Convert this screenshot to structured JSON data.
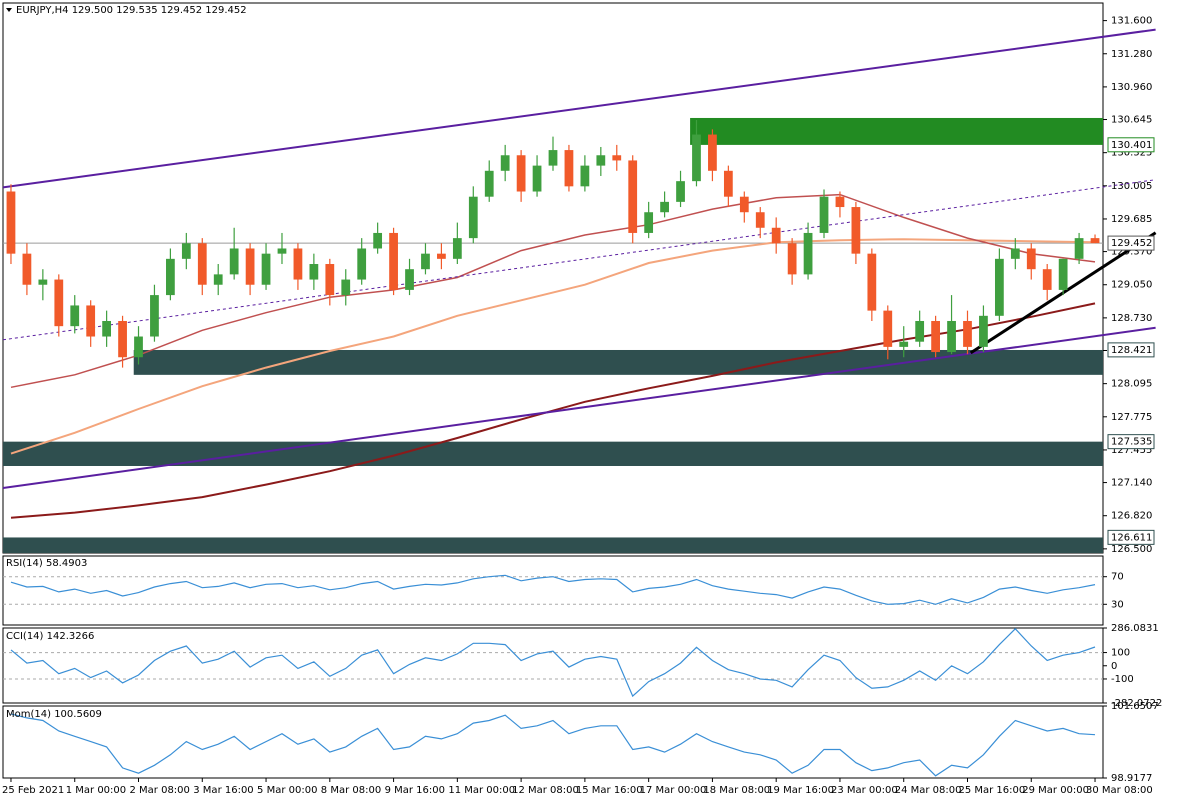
{
  "chart_data": [
    {
      "type": "candlestick",
      "title": "EURJPY,H4  129.500 129.535 129.452 129.452",
      "up_color": "#3f9f3f",
      "down_color": "#f15a2a",
      "open": [
        129.95,
        129.35,
        129.05,
        129.1,
        128.65,
        128.85,
        128.55,
        128.7,
        128.35,
        128.55,
        128.95,
        129.3,
        129.45,
        129.05,
        129.15,
        129.4,
        129.05,
        129.35,
        129.4,
        129.1,
        129.25,
        128.95,
        129.1,
        129.4,
        129.55,
        129.0,
        129.2,
        129.35,
        129.3,
        129.5,
        129.9,
        130.15,
        130.3,
        129.95,
        130.2,
        130.35,
        130.0,
        130.2,
        130.3,
        130.25,
        129.55,
        129.75,
        129.85,
        130.05,
        130.5,
        130.15,
        129.9,
        129.75,
        129.6,
        129.45,
        129.15,
        129.55,
        129.9,
        129.8,
        129.35,
        128.8,
        128.45,
        128.5,
        128.7,
        128.4,
        128.7,
        128.45,
        128.75,
        129.3,
        129.4,
        129.2,
        129.0,
        129.3,
        129.5
      ],
      "high": [
        130.02,
        129.45,
        129.2,
        129.15,
        128.95,
        128.9,
        128.8,
        128.75,
        128.65,
        129.05,
        129.4,
        129.55,
        129.5,
        129.25,
        129.6,
        129.45,
        129.45,
        129.55,
        129.45,
        129.35,
        129.3,
        129.2,
        129.5,
        129.65,
        129.6,
        129.3,
        129.45,
        129.45,
        129.65,
        130.0,
        130.25,
        130.4,
        130.35,
        130.3,
        130.48,
        130.4,
        130.3,
        130.38,
        130.4,
        130.3,
        129.85,
        129.95,
        130.15,
        130.64,
        130.55,
        130.2,
        129.95,
        129.8,
        129.7,
        129.5,
        129.65,
        129.97,
        129.95,
        129.85,
        129.4,
        128.85,
        128.65,
        128.8,
        128.75,
        128.95,
        128.8,
        128.85,
        129.4,
        129.5,
        129.45,
        129.25,
        129.3,
        129.55,
        129.535
      ],
      "low": [
        129.25,
        128.95,
        128.9,
        128.55,
        128.58,
        128.45,
        128.45,
        128.25,
        128.28,
        128.5,
        128.9,
        129.2,
        128.95,
        128.95,
        129.1,
        128.95,
        129.0,
        129.25,
        129.0,
        129.0,
        128.85,
        128.85,
        129.05,
        129.35,
        128.95,
        128.95,
        129.15,
        129.2,
        129.25,
        129.45,
        129.85,
        130.05,
        129.85,
        129.9,
        130.15,
        129.95,
        129.95,
        130.1,
        130.15,
        129.45,
        129.5,
        129.7,
        129.8,
        130.0,
        130.05,
        129.8,
        129.65,
        129.5,
        129.35,
        129.05,
        129.1,
        129.5,
        129.7,
        129.25,
        128.7,
        128.33,
        128.35,
        128.45,
        128.35,
        128.38,
        128.38,
        128.4,
        128.7,
        129.2,
        129.1,
        128.9,
        128.95,
        129.25,
        129.452
      ],
      "close": [
        129.35,
        129.05,
        129.1,
        128.65,
        128.85,
        128.55,
        128.7,
        128.35,
        128.55,
        128.95,
        129.3,
        129.45,
        129.05,
        129.15,
        129.4,
        129.05,
        129.35,
        129.4,
        129.1,
        129.25,
        128.95,
        129.1,
        129.4,
        129.55,
        129.0,
        129.2,
        129.35,
        129.3,
        129.5,
        129.9,
        130.15,
        130.3,
        129.95,
        130.2,
        130.35,
        130.0,
        130.2,
        130.3,
        130.25,
        129.55,
        129.75,
        129.85,
        130.05,
        130.5,
        130.15,
        129.9,
        129.75,
        129.6,
        129.45,
        129.15,
        129.55,
        129.9,
        129.8,
        129.35,
        128.8,
        128.45,
        128.5,
        128.7,
        128.4,
        128.7,
        128.45,
        128.75,
        129.3,
        129.4,
        129.2,
        129.0,
        129.3,
        129.5,
        129.452
      ],
      "xlim": [
        -0.5,
        68.5
      ],
      "ylim": [
        126.46,
        131.77
      ],
      "yticks": [
        {
          "value": 131.6,
          "label": "131.600"
        },
        {
          "value": 131.28,
          "label": "131.280"
        },
        {
          "value": 130.96,
          "label": "130.960"
        },
        130.645,
        130.325,
        {
          "value": 130.005,
          "label": "130.005"
        },
        129.685,
        {
          "value": 129.37,
          "label": "129.370"
        },
        {
          "value": 129.05,
          "label": "129.050"
        },
        {
          "value": 128.73,
          "label": "128.730"
        },
        128.415,
        128.095,
        127.775,
        127.455,
        {
          "value": 127.14,
          "label": "127.140"
        },
        {
          "value": 126.82,
          "label": "126.820"
        },
        {
          "value": 126.5,
          "label": "126.500"
        }
      ],
      "xticks": [
        {
          "value": 0,
          "label": "25 Feb 2021"
        },
        {
          "value": 4,
          "label": "1 Mar 00:00"
        },
        {
          "value": 8,
          "label": "2 Mar 08:00"
        },
        {
          "value": 12,
          "label": "3 Mar 16:00"
        },
        {
          "value": 16,
          "label": "5 Mar 00:00"
        },
        {
          "value": 20,
          "label": "8 Mar 08:00"
        },
        {
          "value": 24,
          "label": "9 Mar 16:00"
        },
        {
          "value": 28,
          "label": "11 Mar 00:00"
        },
        {
          "value": 32,
          "label": "12 Mar 08:00"
        },
        {
          "value": 36,
          "label": "15 Mar 16:00"
        },
        {
          "value": 40,
          "label": "17 Mar 00:00"
        },
        {
          "value": 44,
          "label": "18 Mar 08:00"
        },
        {
          "value": 48,
          "label": "19 Mar 16:00"
        },
        {
          "value": 52,
          "label": "23 Mar 00:00"
        },
        {
          "value": 56,
          "label": "24 Mar 08:00"
        },
        {
          "value": 60,
          "label": "25 Mar 16:00"
        },
        {
          "value": 64,
          "label": "29 Mar 00:00"
        },
        {
          "value": 68,
          "label": "30 Mar 08:00"
        }
      ],
      "zones": [
        {
          "from": 130.66,
          "to": 130.4,
          "start": 42.6,
          "color": "#228b22",
          "label": 130.401,
          "label_color": "#228b22"
        },
        {
          "from": 128.42,
          "to": 128.18,
          "start": 7.7,
          "color": "#2f4f4f",
          "label": 128.421,
          "label_color": "#2f4f4f"
        },
        {
          "from": 127.535,
          "to": 127.3,
          "start": -0.5,
          "color": "#2f4f4f",
          "label": 127.535,
          "label_color": "#2f4f4f"
        },
        {
          "from": 126.61,
          "to": 126.46,
          "start": -0.5,
          "color": "#2f4f4f",
          "label": 126.611,
          "label_color": "#2f4f4f"
        }
      ],
      "last_price": 129.452,
      "lines": [
        {
          "color": "#f4a57c",
          "width": 2,
          "x": [
            0,
            4,
            8,
            12,
            16,
            20,
            24,
            28,
            32,
            36,
            40,
            44,
            48,
            52,
            56,
            60,
            64,
            68
          ],
          "values": [
            127.42,
            127.62,
            127.85,
            128.07,
            128.25,
            128.41,
            128.55,
            128.75,
            128.9,
            129.05,
            129.26,
            129.38,
            129.46,
            129.48,
            129.49,
            129.48,
            129.47,
            129.46
          ]
        },
        {
          "color": "#c05050",
          "width": 1.5,
          "x": [
            0,
            4,
            8,
            12,
            16,
            20,
            24,
            28,
            32,
            36,
            40,
            44,
            48,
            52,
            56,
            60,
            64,
            68
          ],
          "values": [
            128.06,
            128.18,
            128.37,
            128.61,
            128.78,
            128.93,
            129.0,
            129.12,
            129.38,
            129.53,
            129.63,
            129.78,
            129.89,
            129.92,
            129.7,
            129.5,
            129.35,
            129.27
          ]
        },
        {
          "color": "#8b1a1a",
          "width": 2,
          "x": [
            0,
            4,
            8,
            12,
            16,
            20,
            24,
            28,
            32,
            36,
            40,
            44,
            48,
            52,
            56,
            60,
            64,
            68
          ],
          "values": [
            126.8,
            126.85,
            126.92,
            127.0,
            127.12,
            127.25,
            127.4,
            127.57,
            127.75,
            127.92,
            128.05,
            128.17,
            128.3,
            128.41,
            128.52,
            128.62,
            128.74,
            128.87
          ]
        },
        {
          "color": "#5a1fa0",
          "width": 2,
          "x": [
            -0.5,
            71.8
          ],
          "values": [
            129.99,
            131.513
          ]
        },
        {
          "color": "#5a1fa0",
          "width": 2,
          "x": [
            -0.5,
            71.8
          ],
          "values": [
            127.088,
            128.634
          ]
        },
        {
          "color": "#5a1fa0",
          "width": 1,
          "dashed": true,
          "x": [
            -0.5,
            71.8
          ],
          "values": [
            128.518,
            130.064
          ]
        },
        {
          "color": "#000000",
          "width": 3,
          "x": [
            60.2,
            71.8
          ],
          "values": [
            128.392,
            129.552
          ]
        }
      ]
    },
    {
      "type": "line",
      "title": "RSI(14) 58.4903",
      "color": "#3a8fd6",
      "values": [
        62,
        55,
        56,
        48,
        52,
        46,
        50,
        42,
        47,
        55,
        60,
        63,
        54,
        56,
        61,
        54,
        59,
        60,
        54,
        57,
        51,
        54,
        60,
        63,
        52,
        56,
        59,
        58,
        61,
        67,
        70,
        72,
        64,
        68,
        70,
        63,
        66,
        67,
        66,
        48,
        53,
        55,
        59,
        66,
        57,
        52,
        49,
        46,
        44,
        39,
        48,
        55,
        52,
        43,
        35,
        30,
        31,
        36,
        30,
        38,
        32,
        40,
        52,
        55,
        50,
        46,
        51,
        54,
        58.4903
      ],
      "ylim": [
        0,
        100
      ],
      "yticks": [
        70,
        30
      ],
      "levels": [
        70,
        30
      ]
    },
    {
      "type": "line",
      "title": "CCI(14) 142.3266",
      "color": "#3a8fd6",
      "values": [
        120,
        20,
        40,
        -60,
        -20,
        -90,
        -40,
        -130,
        -70,
        40,
        110,
        150,
        20,
        50,
        110,
        -10,
        60,
        80,
        -20,
        30,
        -80,
        -20,
        80,
        120,
        -60,
        10,
        60,
        40,
        90,
        170,
        170,
        160,
        40,
        90,
        110,
        -10,
        50,
        70,
        50,
        -230,
        -120,
        -60,
        20,
        140,
        40,
        -30,
        -60,
        -100,
        -110,
        -160,
        -30,
        80,
        40,
        -90,
        -170,
        -160,
        -110,
        -40,
        -110,
        0,
        -60,
        30,
        160,
        280,
        150,
        40,
        80,
        100,
        142.3266
      ],
      "ylim": [
        -282.0722,
        286.0831
      ],
      "yticks": [
        286.0831,
        100,
        0,
        -100,
        -282.0722
      ],
      "levels": [
        100,
        -100
      ]
    },
    {
      "type": "line",
      "title": "Mom(14) 100.5609",
      "color": "#3a8fd6",
      "values": [
        101.35,
        101.2,
        101.1,
        100.7,
        100.5,
        100.3,
        100.1,
        99.3,
        99.1,
        99.4,
        99.8,
        100.3,
        100.0,
        100.2,
        100.5,
        100.0,
        100.3,
        100.6,
        100.2,
        100.4,
        99.9,
        100.1,
        100.5,
        100.8,
        100.0,
        100.1,
        100.5,
        100.4,
        100.6,
        101.0,
        101.1,
        101.3,
        100.8,
        100.9,
        101.1,
        100.6,
        100.8,
        100.9,
        100.9,
        100.0,
        100.1,
        99.9,
        100.2,
        100.6,
        100.3,
        100.1,
        99.9,
        99.8,
        99.6,
        99.1,
        99.4,
        100.0,
        100.0,
        99.5,
        99.2,
        99.3,
        99.5,
        99.6,
        99.0,
        99.4,
        99.3,
        99.8,
        100.5,
        101.1,
        100.9,
        100.7,
        100.8,
        100.6,
        100.5609
      ],
      "ylim": [
        98.9177,
        101.6507
      ],
      "yticks": [
        101.6507,
        98.9177
      ]
    }
  ]
}
